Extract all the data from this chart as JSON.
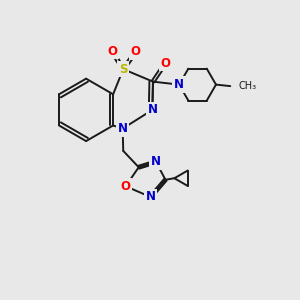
{
  "background_color": "#e8e8e8",
  "bond_color": "#1a1a1a",
  "atom_colors": {
    "S": "#b8b800",
    "O": "#ff0000",
    "N": "#0000cc",
    "C": "#1a1a1a"
  },
  "figsize": [
    3.0,
    3.0
  ],
  "dpi": 100,
  "xlim": [
    0,
    10
  ],
  "ylim": [
    0,
    10
  ]
}
